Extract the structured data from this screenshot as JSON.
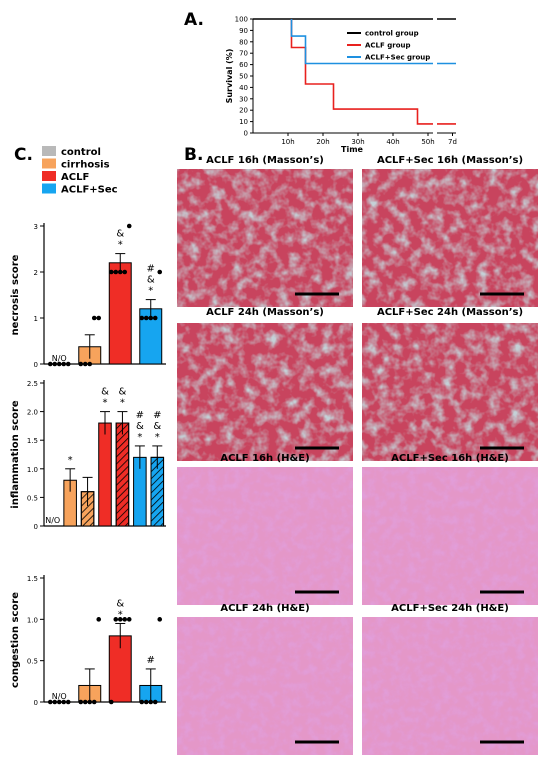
{
  "panel_labels": {
    "a": "A.",
    "b": "B.",
    "c": "C."
  },
  "chart_data": [
    {
      "id": "survival",
      "type": "line",
      "xlabel": "Time",
      "ylabel": "Survival (%)",
      "yticks": [
        "0",
        "10",
        "20",
        "30",
        "40",
        "50",
        "60",
        "70",
        "80",
        "90",
        "100"
      ],
      "xticks": [
        "10h",
        "20h",
        "30h",
        "40h",
        "50h",
        "7d"
      ],
      "ylim": [
        0,
        100
      ],
      "legend_position": "top-right",
      "series": [
        {
          "name": "control group",
          "color": "#000000",
          "points": [
            [
              0,
              100
            ],
            [
              58,
              100
            ]
          ]
        },
        {
          "name": "ACLF group",
          "color": "#e8211e",
          "points": [
            [
              11,
              100
            ],
            [
              11,
              75
            ],
            [
              15,
              75
            ],
            [
              15,
              43
            ],
            [
              23,
              43
            ],
            [
              23,
              21
            ],
            [
              47,
              21
            ],
            [
              47,
              8
            ],
            [
              58,
              8
            ]
          ]
        },
        {
          "name": "ACLF+Sec group",
          "color": "#1e90e0",
          "points": [
            [
              11,
              100
            ],
            [
              11,
              85
            ],
            [
              15,
              85
            ],
            [
              15,
              61
            ],
            [
              58,
              61
            ]
          ]
        }
      ]
    },
    {
      "id": "necrosis",
      "type": "bar",
      "ylabel": "necrosis score",
      "ylim": [
        0,
        3
      ],
      "yticks": [
        "0",
        "1",
        "2",
        "3"
      ],
      "categories": [
        "control",
        "cirrhosis",
        "ACLF",
        "ACLF+Sec"
      ],
      "values": [
        0,
        0.375,
        2.2,
        1.2
      ],
      "errors": [
        0,
        0.26,
        0.2,
        0.2
      ],
      "points": [
        [
          0,
          0,
          0,
          0,
          0
        ],
        [
          0,
          0,
          0,
          1,
          1
        ],
        [
          2,
          2,
          2,
          2,
          3
        ],
        [
          1,
          1,
          1,
          1,
          2
        ]
      ],
      "na_label": "N/O",
      "sig": [
        "",
        "",
        "*\n&",
        "*\n&\n#"
      ]
    },
    {
      "id": "inflammation",
      "type": "bar",
      "ylabel": "inflammation score",
      "ylim": [
        0,
        2.5
      ],
      "yticks": [
        "0",
        "0.5",
        "1.0",
        "1.5",
        "2.0",
        "2.5"
      ],
      "categories": [
        "control",
        "cirrhosis",
        "cirrhosis-hatched",
        "ACLF",
        "ACLF-hatched",
        "ACLF+Sec",
        "ACLF+Sec-hatched"
      ],
      "values": [
        0,
        0.8,
        0.6,
        1.8,
        1.8,
        1.2,
        1.2
      ],
      "errors": [
        0,
        0.2,
        0.25,
        0.2,
        0.2,
        0.2,
        0.2
      ],
      "na_label": "N/O",
      "sig": [
        "",
        "*",
        "",
        "*\n&",
        "*\n&",
        "*\n&\n#",
        "*\n&\n#"
      ]
    },
    {
      "id": "congestion",
      "type": "bar",
      "ylabel": "congestion score",
      "ylim": [
        0,
        1.5
      ],
      "yticks": [
        "0",
        "0.5",
        "1.0",
        "1.5"
      ],
      "categories": [
        "control",
        "cirrhosis",
        "ACLF",
        "ACLF+Sec"
      ],
      "values": [
        0,
        0.2,
        0.8,
        0.2
      ],
      "errors": [
        0,
        0.2,
        0.15,
        0.2
      ],
      "points": [
        [
          0,
          0,
          0,
          0,
          0
        ],
        [
          0,
          0,
          0,
          0,
          1
        ],
        [
          0,
          1,
          1,
          1,
          1
        ],
        [
          0,
          0,
          0,
          0,
          1
        ]
      ],
      "na_label": "N/O",
      "sig": [
        "",
        "",
        "*\n&",
        "#"
      ]
    }
  ],
  "legend_c": {
    "items": [
      {
        "label": "control",
        "color": "#b9b9b9"
      },
      {
        "label": "cirrhosis",
        "color": "#f7a35c"
      },
      {
        "label": "ACLF",
        "color": "#ef2d26"
      },
      {
        "label": "ACLF+Sec",
        "color": "#16a5f0"
      }
    ]
  },
  "micrographs": [
    {
      "title": "ACLF 16h (Masson’s)",
      "stain": "masson"
    },
    {
      "title": "ACLF+Sec 16h (Masson’s)",
      "stain": "masson"
    },
    {
      "title": "ACLF 24h (Masson’s)",
      "stain": "masson"
    },
    {
      "title": "ACLF+Sec 24h (Masson’s)",
      "stain": "masson"
    },
    {
      "title": "ACLF 16h (H&E)",
      "stain": "he"
    },
    {
      "title": "ACLF+Sec 16h (H&E)",
      "stain": "he"
    },
    {
      "title": "ACLF 24h (H&E)",
      "stain": "he"
    },
    {
      "title": "ACLF+Sec 24h (H&E)",
      "stain": "he"
    }
  ]
}
